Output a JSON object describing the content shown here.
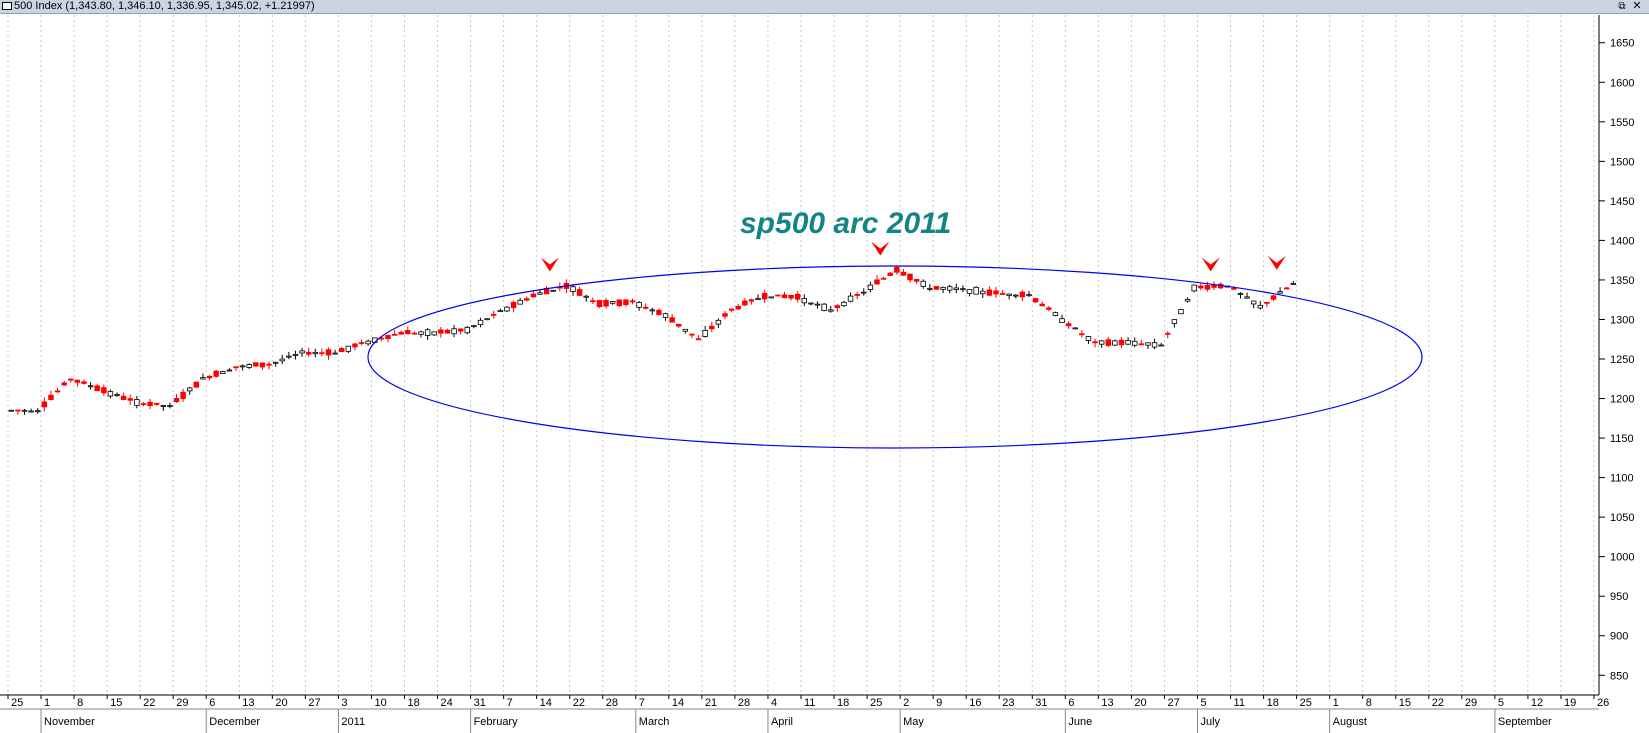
{
  "window": {
    "title": "500 Index (1,343.80, 1,346.10, 1,336.95, 1,345.02, +1.21997)",
    "restore_glyph": "⧉",
    "close_glyph": "✕"
  },
  "chart_data": {
    "type": "candlestick",
    "title": "",
    "annotation": "sp500 arc 2011",
    "ylim": [
      820,
      1680
    ],
    "y_ticks": [
      850,
      900,
      950,
      1000,
      1050,
      1100,
      1150,
      1200,
      1250,
      1300,
      1350,
      1400,
      1450,
      1500,
      1550,
      1600,
      1650
    ],
    "grid": "vertical dotted",
    "x_week_labels": [
      "25",
      "1",
      "8",
      "15",
      "22",
      "29",
      "6",
      "13",
      "20",
      "27",
      "3",
      "10",
      "18",
      "24",
      "31",
      "7",
      "14",
      "22",
      "28",
      "7",
      "14",
      "21",
      "28",
      "4",
      "11",
      "18",
      "25",
      "2",
      "9",
      "16",
      "23",
      "31",
      "6",
      "13",
      "20",
      "27",
      "5",
      "11",
      "18",
      "25",
      "1",
      "8",
      "15",
      "22",
      "29",
      "5",
      "12",
      "19",
      "26"
    ],
    "x_month_labels": [
      "November",
      "December",
      "2011",
      "February",
      "March",
      "April",
      "May",
      "June",
      "July",
      "August",
      "September"
    ],
    "up_color": "#ffffff",
    "down_color": "#ff0000",
    "ellipse_color": "#0000ee",
    "arrow_color": "#ff0000",
    "weeks": [
      {
        "label": "Oct 25",
        "close": 1185
      },
      {
        "label": "Nov 1",
        "close": 1225
      },
      {
        "label": "Nov 8",
        "close": 1210
      },
      {
        "label": "Nov 15",
        "close": 1195
      },
      {
        "label": "Nov 22",
        "close": 1190
      },
      {
        "label": "Nov 29",
        "close": 1225
      },
      {
        "label": "Dec 6",
        "close": 1240
      },
      {
        "label": "Dec 13",
        "close": 1243
      },
      {
        "label": "Dec 20",
        "close": 1258
      },
      {
        "label": "Dec 27",
        "close": 1258
      },
      {
        "label": "Jan 3",
        "close": 1272
      },
      {
        "label": "Jan 10",
        "close": 1283
      },
      {
        "label": "Jan 18",
        "close": 1283
      },
      {
        "label": "Jan 24",
        "close": 1287
      },
      {
        "label": "Jan 31",
        "close": 1310
      },
      {
        "label": "Feb 7",
        "close": 1330
      },
      {
        "label": "Feb 14",
        "close": 1343
      },
      {
        "label": "Feb 22",
        "close": 1320
      },
      {
        "label": "Feb 28",
        "close": 1322
      },
      {
        "label": "Mar 7",
        "close": 1305
      },
      {
        "label": "Mar 14",
        "close": 1275
      },
      {
        "label": "Mar 21",
        "close": 1312
      },
      {
        "label": "Mar 28",
        "close": 1330
      },
      {
        "label": "Apr 4",
        "close": 1328
      },
      {
        "label": "Apr 11",
        "close": 1312
      },
      {
        "label": "Apr 18",
        "close": 1335
      },
      {
        "label": "Apr 25",
        "close": 1363
      },
      {
        "label": "May 2",
        "close": 1340
      },
      {
        "label": "May 9",
        "close": 1338
      },
      {
        "label": "May 16",
        "close": 1333
      },
      {
        "label": "May 23",
        "close": 1331
      },
      {
        "label": "May 31",
        "close": 1300
      },
      {
        "label": "Jun 6",
        "close": 1270
      },
      {
        "label": "Jun 13",
        "close": 1271
      },
      {
        "label": "Jun 20",
        "close": 1268
      },
      {
        "label": "Jun 27",
        "close": 1340
      },
      {
        "label": "Jul 5",
        "close": 1343
      },
      {
        "label": "Jul 11",
        "close": 1316
      },
      {
        "label": "Jul 18",
        "close": 1345
      }
    ]
  }
}
